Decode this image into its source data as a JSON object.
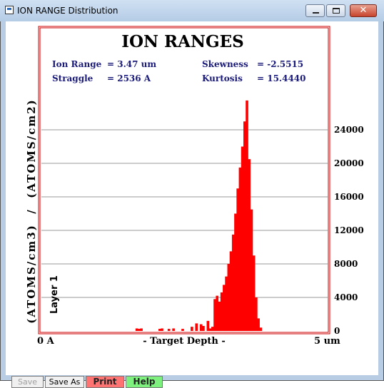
{
  "window": {
    "title": "ION RANGE Distribution"
  },
  "toolbar": {
    "save_label": "Save",
    "save_as_label": "Save As",
    "print_label": "Print",
    "help_label": "Help"
  },
  "stats": {
    "ion_range_label": "Ion Range",
    "ion_range_value": "= 3.47 um",
    "straggle_label": "Straggle",
    "straggle_value": "= 2536 A",
    "skewness_label": "Skewness",
    "skewness_value": "= -2.5515",
    "kurtosis_label": "Kurtosis",
    "kurtosis_value": "= 15.4440"
  },
  "colors": {
    "bars": "#ff0000",
    "frame": "#cc0000",
    "stats_text": "#1a1a7a",
    "print_button": "#ff7373",
    "help_button": "#7ef07e"
  },
  "chart_data": {
    "type": "bar",
    "title": "ION RANGES",
    "xlabel": "- Target Depth -",
    "ylabel": "(ATOMS/cm3)  /  (ATOMS/cm2)",
    "x_tick_labels": [
      "0 A",
      "5 um"
    ],
    "y_tick_labels": [
      "0",
      "4000",
      "8000",
      "12000",
      "16000",
      "20000",
      "24000"
    ],
    "ylim": [
      0,
      28000
    ],
    "xlim": [
      0,
      5
    ],
    "grid": true,
    "annotation": "Layer 1",
    "series": [
      {
        "x": [
          1.0,
          1.04,
          1.08,
          1.12,
          1.16,
          1.2,
          1.24,
          1.28,
          1.32,
          1.36,
          1.4,
          1.44,
          1.48,
          1.52,
          1.56,
          1.6,
          1.64,
          1.68,
          1.72,
          1.76,
          1.8,
          1.84,
          1.88,
          1.92,
          1.96,
          2.0,
          2.04,
          2.08,
          2.12,
          2.16,
          2.2,
          2.24,
          2.28,
          2.32,
          2.36,
          2.4,
          2.44,
          2.48,
          2.52,
          2.56,
          2.6,
          2.64,
          2.68,
          2.72,
          2.76,
          2.8,
          2.84,
          2.88,
          2.92,
          2.96,
          3.0,
          3.04,
          3.08,
          3.12,
          3.16,
          3.2,
          3.24,
          3.28,
          3.32,
          3.36,
          3.4,
          3.44,
          3.48,
          3.52,
          3.56,
          3.6,
          3.64,
          3.68,
          3.72,
          3.76,
          3.8,
          3.84,
          3.88,
          3.92,
          3.96,
          4.0
        ],
        "values": [
          0,
          0,
          0,
          0,
          0,
          0,
          0,
          0,
          0,
          0,
          0,
          0,
          0,
          0,
          0,
          0,
          300,
          250,
          300,
          0,
          0,
          0,
          0,
          0,
          0,
          0,
          250,
          300,
          0,
          0,
          250,
          0,
          300,
          0,
          0,
          0,
          250,
          0,
          0,
          0,
          500,
          0,
          900,
          0,
          800,
          600,
          0,
          1200,
          300,
          500,
          3800,
          4200,
          3500,
          4600,
          5500,
          6500,
          8000,
          9500,
          11500,
          14000,
          17000,
          19500,
          22000,
          25000,
          27500,
          20500,
          14500,
          9000,
          4000,
          1500,
          400,
          0,
          0,
          0,
          0,
          0
        ]
      }
    ]
  }
}
